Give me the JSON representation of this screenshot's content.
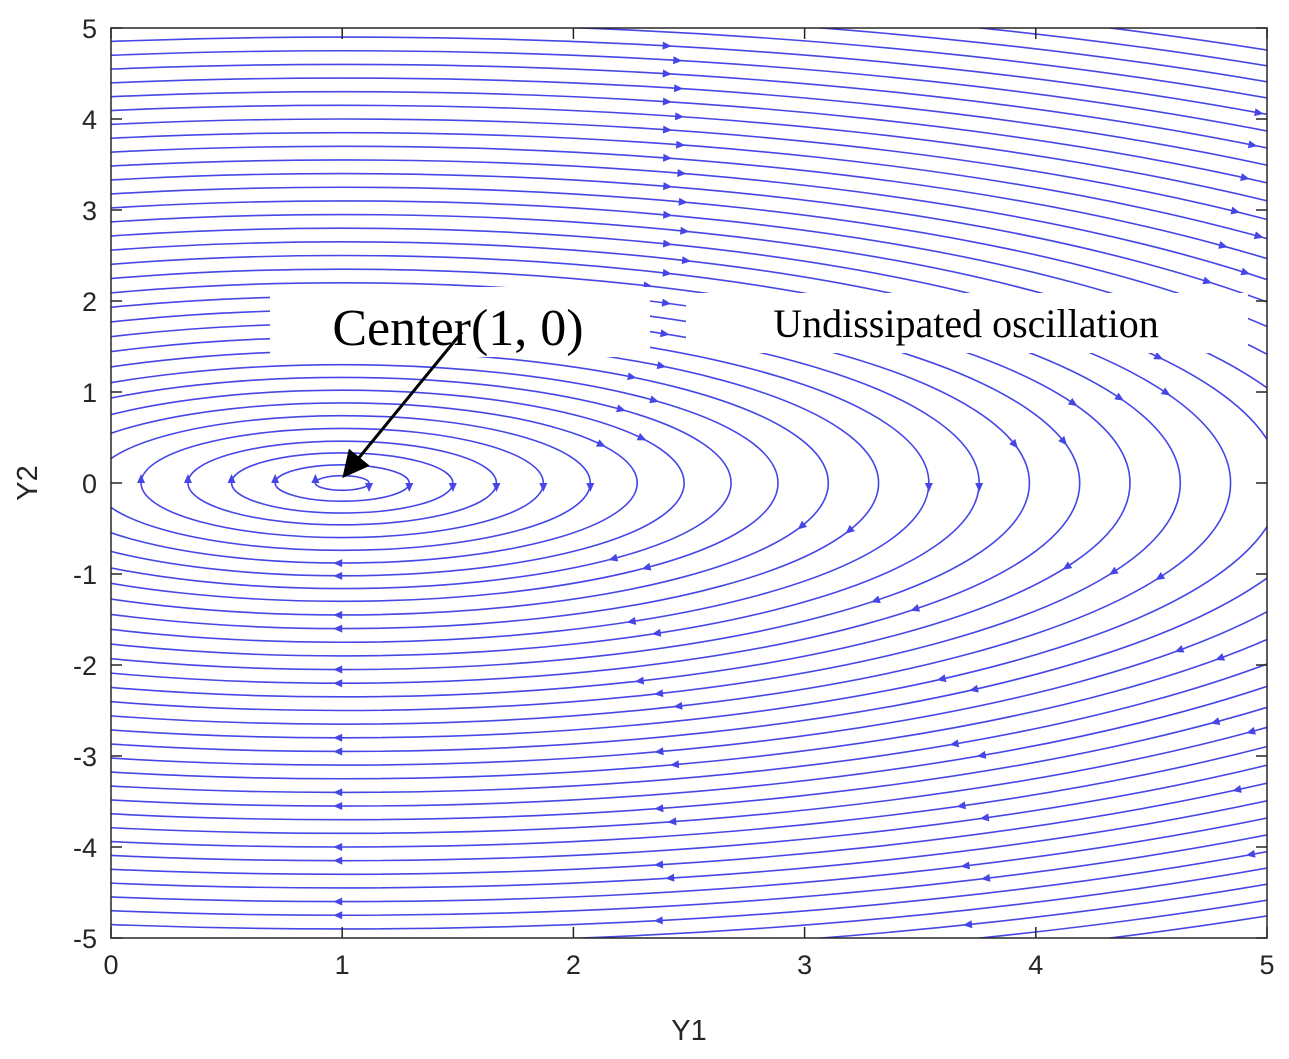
{
  "chart_data": {
    "type": "streamplot",
    "xlabel": "Y1",
    "ylabel": "Y2",
    "xlim": [
      0,
      5
    ],
    "ylim": [
      -5,
      5
    ],
    "xticks": [
      "0",
      "1",
      "2",
      "3",
      "4",
      "5"
    ],
    "yticks": [
      "5",
      "4",
      "3",
      "2",
      "1",
      "0",
      "-1",
      "-2",
      "-3",
      "-4",
      "-5"
    ],
    "grid": false,
    "stream_color": "#4646e6",
    "center": {
      "x": 1,
      "y": 0
    },
    "orbit_half_heights": [
      0.08,
      0.2,
      0.33,
      0.46,
      0.6,
      0.74,
      0.88,
      1.02,
      1.16,
      1.3,
      1.45,
      1.6,
      1.75,
      1.9,
      2.05,
      2.2,
      2.35,
      2.5,
      2.65,
      2.8,
      2.95,
      3.1,
      3.25,
      3.4,
      3.55,
      3.7,
      3.85,
      4.0,
      4.15,
      4.3,
      4.45,
      4.6,
      4.75,
      4.9,
      5.05,
      5.2,
      5.35,
      5.5
    ],
    "orbit_half_width_ratio": 1.45,
    "annotations": [
      {
        "id": "center",
        "text": "Center(1, 0)",
        "arrow_to": {
          "x": 1,
          "y": 0
        }
      },
      {
        "id": "oscillation",
        "text": "Undissipated oscillation"
      }
    ]
  }
}
